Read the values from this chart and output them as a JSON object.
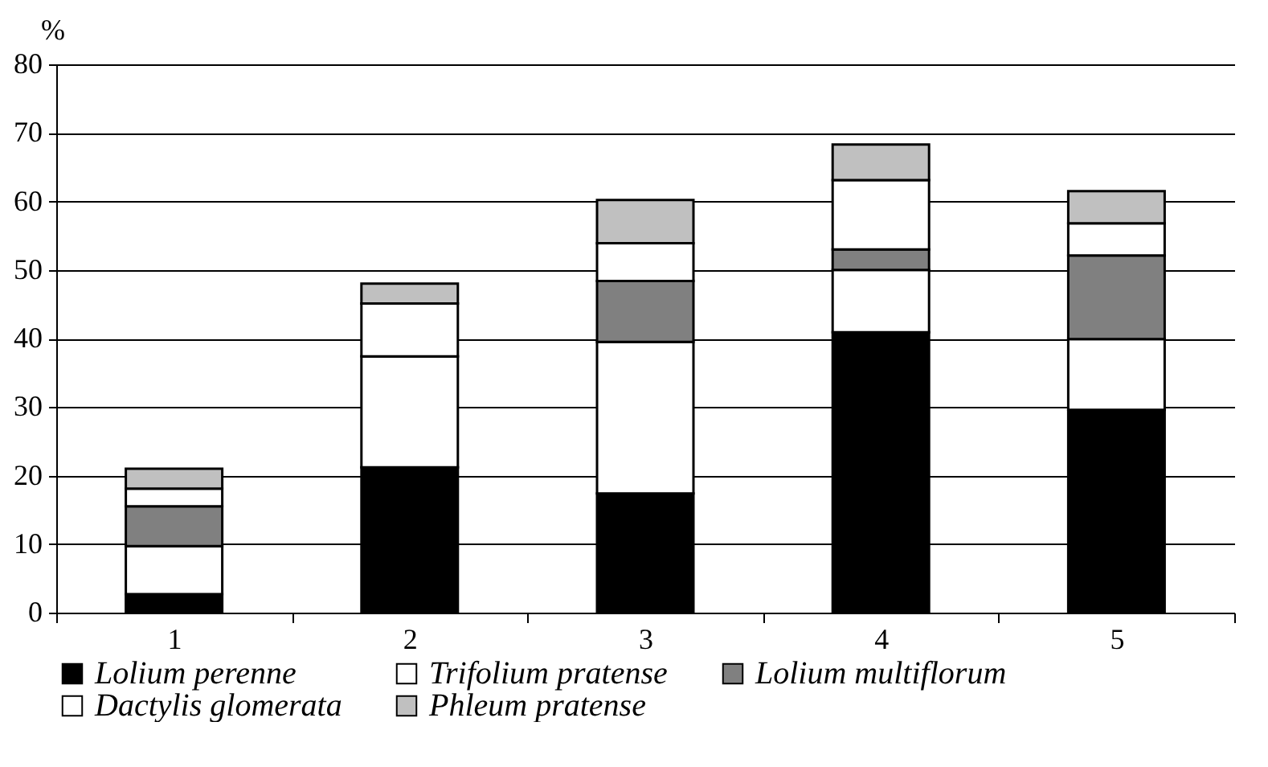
{
  "chart_data": {
    "type": "bar",
    "stacked": true,
    "ylabel": "%",
    "categories": [
      "1",
      "2",
      "3",
      "4",
      "5"
    ],
    "series": [
      {
        "name": "Lolium perenne",
        "color": "#000000",
        "values": [
          2.7,
          21.2,
          17.4,
          40.9,
          29.6
        ]
      },
      {
        "name": "Trifolium pratense",
        "color": "#ffffff",
        "values": [
          7.0,
          16.2,
          22.1,
          9.1,
          10.3
        ]
      },
      {
        "name": "Lolium multiflorum",
        "color": "#808080",
        "values": [
          5.8,
          0,
          8.9,
          3.0,
          12.2
        ]
      },
      {
        "name": "Dactylis glomerata",
        "color": "#ffffff",
        "values": [
          2.6,
          7.7,
          5.5,
          10.1,
          4.7
        ]
      },
      {
        "name": "Phleum pratense",
        "color": "#c0c0c0",
        "values": [
          2.9,
          2.9,
          6.3,
          5.2,
          4.7
        ]
      }
    ],
    "ylim": [
      0,
      80
    ],
    "yticks": [
      0,
      10,
      20,
      30,
      40,
      50,
      60,
      70,
      80
    ],
    "grid": "y",
    "legend": "bottom"
  }
}
